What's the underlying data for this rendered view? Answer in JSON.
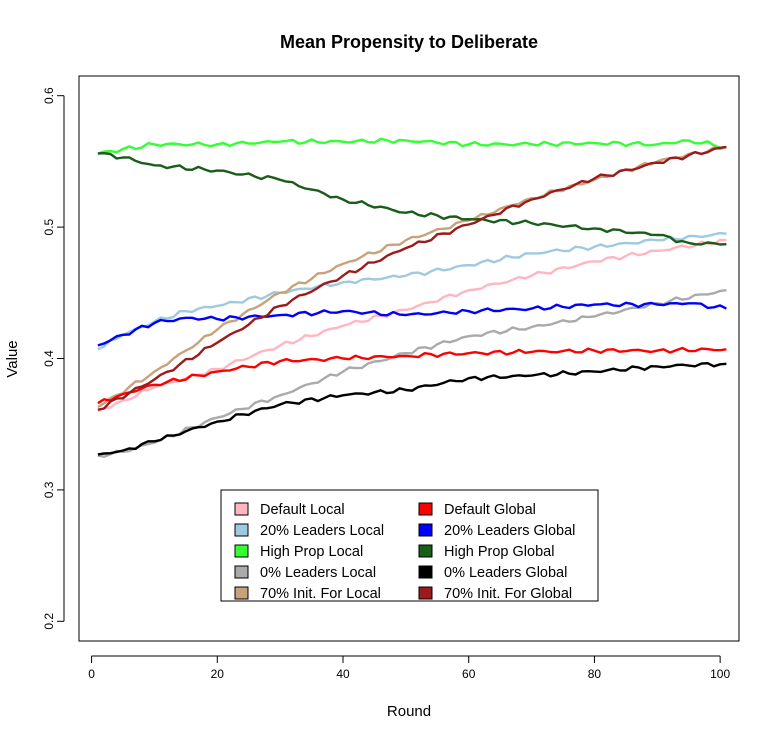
{
  "chart_data": {
    "type": "line",
    "title": "Mean Propensity to Deliberate",
    "xlabel": "Round",
    "ylabel": "Value",
    "xlim": [
      -2,
      103
    ],
    "ylim": [
      0.185,
      0.615
    ],
    "xticks": [
      "0",
      "20",
      "40",
      "60",
      "80",
      "100"
    ],
    "yticks": [
      "0.2",
      "0.3",
      "0.4",
      "0.5",
      "0.6"
    ],
    "grid": false,
    "legend_position": "bottom-center",
    "series": [
      {
        "name": "Default Local",
        "color": "#FFB6C1",
        "points": [
          [
            1,
            0.36
          ],
          [
            5,
            0.368
          ],
          [
            10,
            0.378
          ],
          [
            20,
            0.392
          ],
          [
            30,
            0.41
          ],
          [
            40,
            0.425
          ],
          [
            50,
            0.437
          ],
          [
            60,
            0.452
          ],
          [
            70,
            0.463
          ],
          [
            80,
            0.474
          ],
          [
            90,
            0.482
          ],
          [
            101,
            0.49
          ]
        ]
      },
      {
        "name": "20% Leaders Local",
        "color": "#9ECAE1",
        "points": [
          [
            1,
            0.407
          ],
          [
            5,
            0.418
          ],
          [
            10,
            0.428
          ],
          [
            15,
            0.436
          ],
          [
            20,
            0.44
          ],
          [
            30,
            0.45
          ],
          [
            40,
            0.458
          ],
          [
            50,
            0.463
          ],
          [
            60,
            0.471
          ],
          [
            70,
            0.48
          ],
          [
            80,
            0.485
          ],
          [
            90,
            0.49
          ],
          [
            101,
            0.495
          ]
        ]
      },
      {
        "name": "High Prop Local",
        "color": "#33FF33",
        "points": [
          [
            1,
            0.556
          ],
          [
            10,
            0.563
          ],
          [
            20,
            0.563
          ],
          [
            30,
            0.565
          ],
          [
            40,
            0.565
          ],
          [
            50,
            0.566
          ],
          [
            60,
            0.563
          ],
          [
            70,
            0.563
          ],
          [
            80,
            0.564
          ],
          [
            90,
            0.563
          ],
          [
            95,
            0.566
          ],
          [
            101,
            0.561
          ]
        ]
      },
      {
        "name": "0% Leaders Local",
        "color": "#AAAAAA",
        "points": [
          [
            1,
            0.326
          ],
          [
            5,
            0.329
          ],
          [
            10,
            0.336
          ],
          [
            20,
            0.355
          ],
          [
            30,
            0.372
          ],
          [
            40,
            0.39
          ],
          [
            50,
            0.404
          ],
          [
            60,
            0.417
          ],
          [
            70,
            0.424
          ],
          [
            80,
            0.432
          ],
          [
            90,
            0.442
          ],
          [
            101,
            0.452
          ]
        ]
      },
      {
        "name": "70% Init. For Local",
        "color": "#C8A27A",
        "points": [
          [
            1,
            0.363
          ],
          [
            10,
            0.39
          ],
          [
            20,
            0.422
          ],
          [
            30,
            0.45
          ],
          [
            40,
            0.472
          ],
          [
            50,
            0.49
          ],
          [
            60,
            0.505
          ],
          [
            70,
            0.522
          ],
          [
            80,
            0.536
          ],
          [
            90,
            0.55
          ],
          [
            101,
            0.561
          ]
        ]
      },
      {
        "name": "Default Global",
        "color": "#FF0000",
        "points": [
          [
            1,
            0.366
          ],
          [
            5,
            0.373
          ],
          [
            10,
            0.38
          ],
          [
            20,
            0.39
          ],
          [
            30,
            0.398
          ],
          [
            40,
            0.4
          ],
          [
            50,
            0.402
          ],
          [
            60,
            0.404
          ],
          [
            70,
            0.405
          ],
          [
            80,
            0.406
          ],
          [
            90,
            0.406
          ],
          [
            101,
            0.407
          ]
        ]
      },
      {
        "name": "20% Leaders Global",
        "color": "#0000FF",
        "points": [
          [
            1,
            0.41
          ],
          [
            5,
            0.418
          ],
          [
            10,
            0.427
          ],
          [
            15,
            0.431
          ],
          [
            20,
            0.43
          ],
          [
            30,
            0.433
          ],
          [
            40,
            0.436
          ],
          [
            50,
            0.433
          ],
          [
            60,
            0.436
          ],
          [
            70,
            0.438
          ],
          [
            80,
            0.441
          ],
          [
            90,
            0.441
          ],
          [
            95,
            0.442
          ],
          [
            101,
            0.438
          ]
        ]
      },
      {
        "name": "High Prop Global",
        "color": "#1A5C1A",
        "points": [
          [
            1,
            0.556
          ],
          [
            5,
            0.553
          ],
          [
            10,
            0.547
          ],
          [
            20,
            0.543
          ],
          [
            30,
            0.536
          ],
          [
            40,
            0.521
          ],
          [
            50,
            0.511
          ],
          [
            60,
            0.506
          ],
          [
            70,
            0.503
          ],
          [
            80,
            0.499
          ],
          [
            90,
            0.494
          ],
          [
            95,
            0.488
          ],
          [
            101,
            0.487
          ]
        ]
      },
      {
        "name": "0% Leaders Global",
        "color": "#000000",
        "points": [
          [
            1,
            0.327
          ],
          [
            5,
            0.33
          ],
          [
            10,
            0.337
          ],
          [
            20,
            0.352
          ],
          [
            30,
            0.365
          ],
          [
            40,
            0.372
          ],
          [
            50,
            0.376
          ],
          [
            60,
            0.385
          ],
          [
            70,
            0.387
          ],
          [
            80,
            0.39
          ],
          [
            90,
            0.394
          ],
          [
            101,
            0.396
          ]
        ]
      },
      {
        "name": "70% Init. For Global",
        "color": "#9B1B1B",
        "points": [
          [
            1,
            0.361
          ],
          [
            10,
            0.384
          ],
          [
            20,
            0.412
          ],
          [
            30,
            0.44
          ],
          [
            40,
            0.463
          ],
          [
            50,
            0.484
          ],
          [
            60,
            0.502
          ],
          [
            70,
            0.521
          ],
          [
            80,
            0.537
          ],
          [
            90,
            0.549
          ],
          [
            101,
            0.561
          ]
        ]
      }
    ]
  }
}
